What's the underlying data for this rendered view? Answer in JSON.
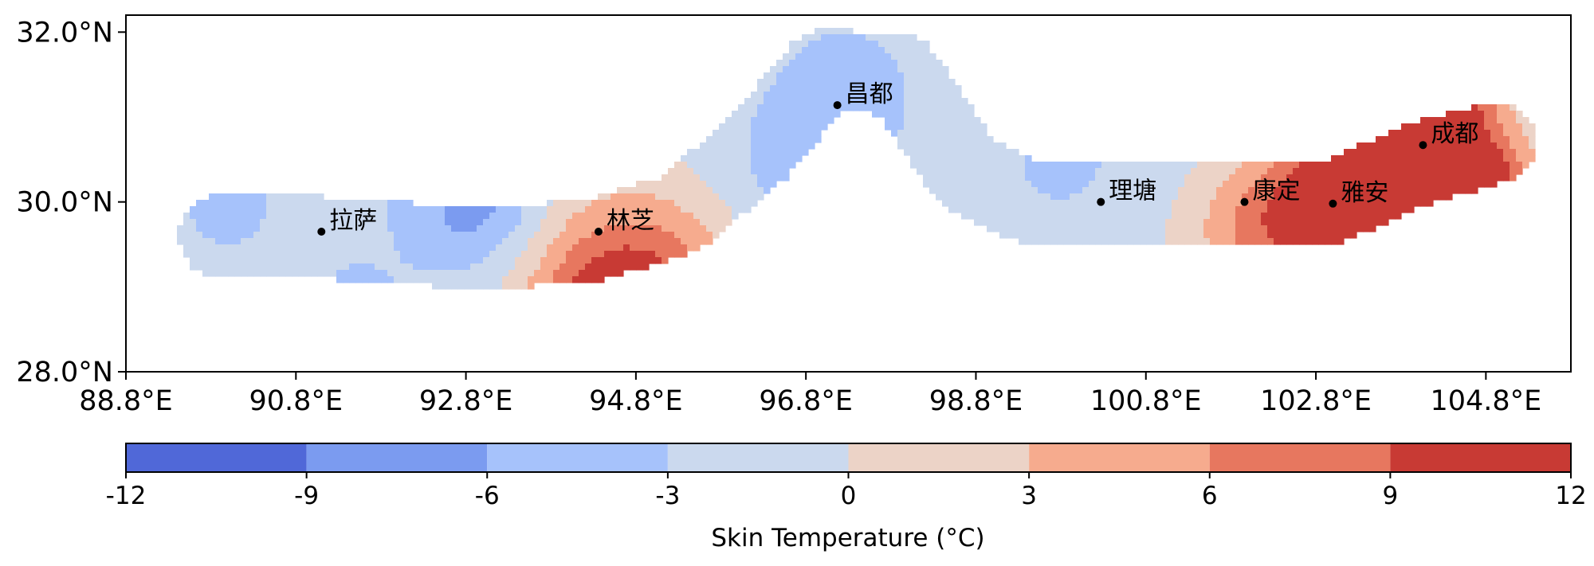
{
  "chart_data": {
    "type": "heatmap",
    "title": "",
    "colorbar": {
      "label": "Skin Temperature (°C)",
      "ticks": [
        "-12",
        "-9",
        "-6",
        "-3",
        "0",
        "3",
        "6",
        "9",
        "12"
      ],
      "bins": [
        {
          "from": -12,
          "to": -9,
          "color": "#5068d8"
        },
        {
          "from": -9,
          "to": -6,
          "color": "#7b9bf0"
        },
        {
          "from": -6,
          "to": -3,
          "color": "#a6c2fb"
        },
        {
          "from": -3,
          "to": 0,
          "color": "#cbd9ee"
        },
        {
          "from": 0,
          "to": 3,
          "color": "#ecd3c7"
        },
        {
          "from": 3,
          "to": 6,
          "color": "#f6ab8e"
        },
        {
          "from": 6,
          "to": 9,
          "color": "#e7775f"
        },
        {
          "from": 9,
          "to": 12,
          "color": "#c83a34"
        }
      ]
    },
    "xaxis": {
      "range": [
        88.8,
        105.8
      ],
      "ticks": [
        88.8,
        90.8,
        92.8,
        94.8,
        96.8,
        98.8,
        100.8,
        102.8,
        104.8
      ],
      "tick_labels": [
        "88.8°E",
        "90.8°E",
        "92.8°E",
        "94.8°E",
        "96.8°E",
        "98.8°E",
        "100.8°E",
        "102.8°E",
        "104.8°E"
      ]
    },
    "yaxis": {
      "range": [
        28.0,
        32.2
      ],
      "ticks": [
        28.0,
        30.0,
        32.0
      ],
      "tick_labels": [
        "28.0°N",
        "30.0°N",
        "32.0°N"
      ]
    },
    "cities": [
      {
        "name": "拉萨",
        "lon": 91.1,
        "lat": 29.65
      },
      {
        "name": "林芝",
        "lon": 94.36,
        "lat": 29.65
      },
      {
        "name": "昌都",
        "lon": 97.17,
        "lat": 31.14
      },
      {
        "name": "理塘",
        "lon": 100.27,
        "lat": 30.0
      },
      {
        "name": "康定",
        "lon": 101.96,
        "lat": 30.0
      },
      {
        "name": "雅安",
        "lon": 103.0,
        "lat": 29.98
      },
      {
        "name": "成都",
        "lon": 104.06,
        "lat": 30.67
      }
    ],
    "field": {
      "base_value": -1.5,
      "corridor": [
        [
          89.9,
          29.6
        ],
        [
          90.8,
          29.6
        ],
        [
          91.6,
          29.55
        ],
        [
          93.0,
          29.45
        ],
        [
          94.3,
          29.55
        ],
        [
          95.3,
          29.85
        ],
        [
          96.2,
          30.6
        ],
        [
          97.0,
          31.55
        ],
        [
          97.9,
          31.5
        ],
        [
          98.7,
          30.35
        ],
        [
          99.4,
          30.0
        ],
        [
          100.5,
          30.0
        ],
        [
          101.8,
          30.0
        ],
        [
          103.0,
          30.0
        ],
        [
          104.0,
          30.45
        ],
        [
          104.9,
          30.7
        ]
      ],
      "corridor_halfwidth": 0.48,
      "anomalies": [
        {
          "lon": 95.0,
          "lat": 28.65,
          "value": 7.5,
          "radius": 0.9
        },
        {
          "lon": 94.6,
          "lat": 29.3,
          "value": 2.5,
          "radius": 0.7
        },
        {
          "lon": 94.3,
          "lat": 28.5,
          "value": 4.5,
          "radius": 0.55
        },
        {
          "lon": 101.9,
          "lat": 29.6,
          "value": 2.5,
          "radius": 0.55
        },
        {
          "lon": 102.6,
          "lat": 29.8,
          "value": 3.5,
          "radius": 0.6
        },
        {
          "lon": 103.2,
          "lat": 30.1,
          "value": 6.5,
          "radius": 0.75
        },
        {
          "lon": 104.0,
          "lat": 30.4,
          "value": 8.0,
          "radius": 0.75
        },
        {
          "lon": 104.6,
          "lat": 29.95,
          "value": 11.0,
          "radius": 0.55
        },
        {
          "lon": 104.3,
          "lat": 31.2,
          "value": 6.0,
          "radius": 0.45
        },
        {
          "lon": 97.3,
          "lat": 31.35,
          "value": -4.0,
          "radius": 0.6
        },
        {
          "lon": 96.8,
          "lat": 30.4,
          "value": -5.0,
          "radius": 0.6
        },
        {
          "lon": 96.9,
          "lat": 29.9,
          "value": -7.0,
          "radius": 0.25
        },
        {
          "lon": 99.8,
          "lat": 30.5,
          "value": -4.0,
          "radius": 0.45
        },
        {
          "lon": 92.6,
          "lat": 29.85,
          "value": -5.5,
          "radius": 0.5
        },
        {
          "lon": 93.2,
          "lat": 29.95,
          "value": -4.5,
          "radius": 0.4
        },
        {
          "lon": 90.0,
          "lat": 29.95,
          "value": -6.0,
          "radius": 0.3
        },
        {
          "lon": 91.5,
          "lat": 28.8,
          "value": -4.5,
          "radius": 0.35
        },
        {
          "lon": 96.2,
          "lat": 29.3,
          "value": -4.0,
          "radius": 0.3
        }
      ]
    }
  }
}
